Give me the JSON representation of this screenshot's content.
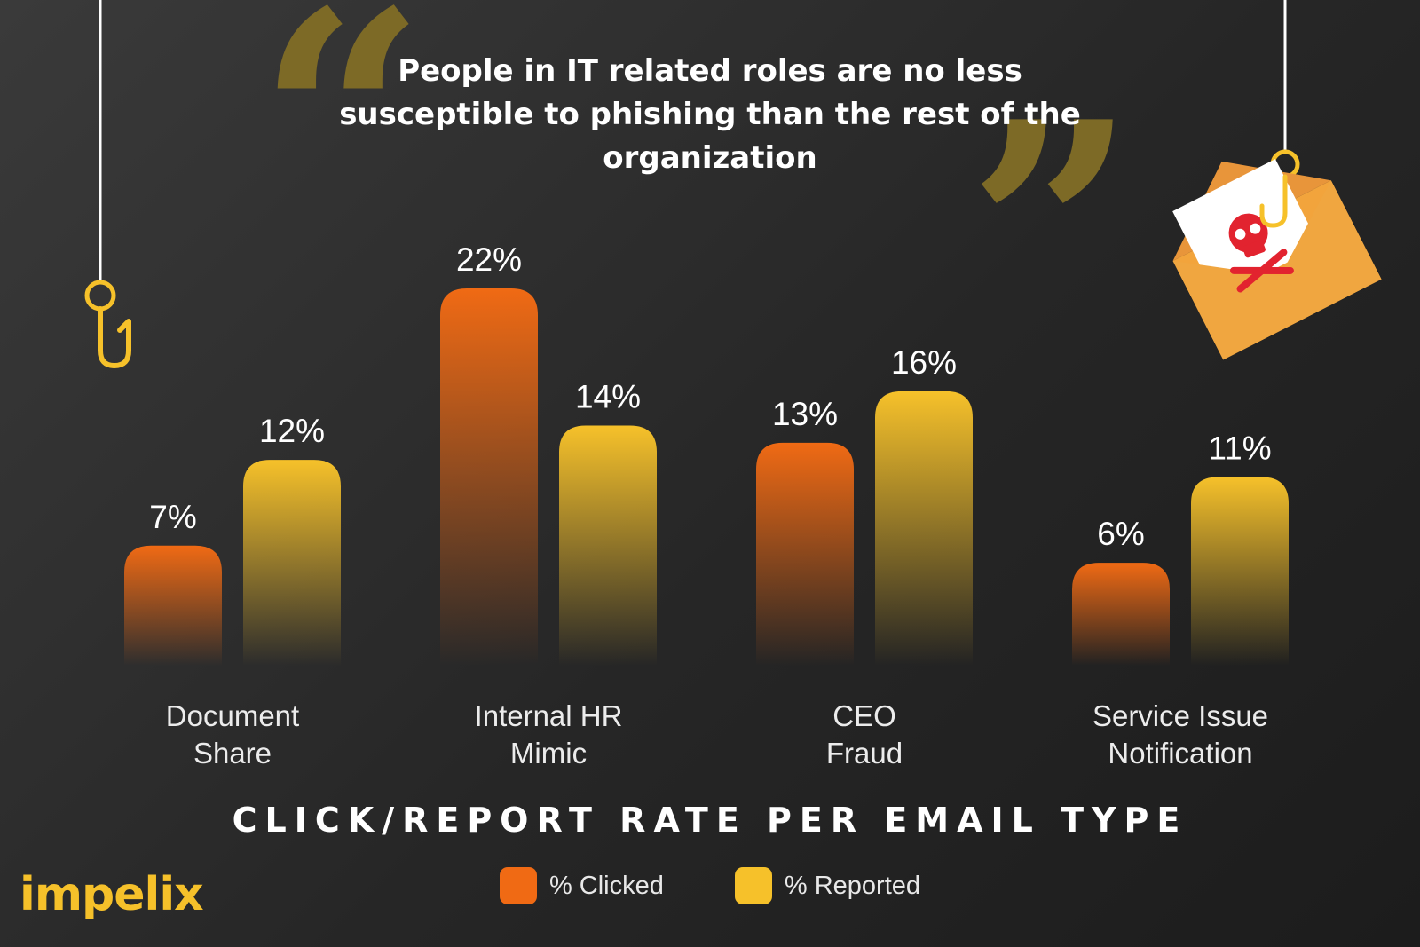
{
  "quote": {
    "text": "People in IT related roles are no less susceptible to phishing than the rest of the organization"
  },
  "brand": {
    "logo_text": "impelix",
    "logo_color": "#f6c12a"
  },
  "colors": {
    "clicked_top": "#f06a14",
    "clicked_bottom": "#2a2a2a",
    "reported_top": "#f6c12a",
    "reported_bottom": "#2a2a2a",
    "accent": "#f6c12a",
    "quote_marks": "#7d6a26"
  },
  "icons": [
    "fish-hook-icon",
    "phishing-envelope-icon",
    "skull-crossbones-icon",
    "quote-open-icon",
    "quote-close-icon"
  ],
  "chart_data": {
    "type": "bar",
    "title": "CLICK/REPORT RATE PER EMAIL TYPE",
    "categories": [
      [
        "Document",
        "Share"
      ],
      [
        "Internal HR",
        "Mimic"
      ],
      [
        "CEO",
        "Fraud"
      ],
      [
        "Service Issue",
        "Notification"
      ]
    ],
    "series": [
      {
        "name": "% Clicked",
        "values": [
          7,
          22,
          13,
          6
        ],
        "labels": [
          "7%",
          "22%",
          "13%",
          "6%"
        ],
        "color": "#f06a14"
      },
      {
        "name": "% Reported",
        "values": [
          12,
          14,
          16,
          11
        ],
        "labels": [
          "12%",
          "14%",
          "16%",
          "11%"
        ],
        "color": "#f6c12a"
      }
    ],
    "ylim": [
      0,
      22
    ],
    "grid": false,
    "legend": "bottom-center"
  }
}
